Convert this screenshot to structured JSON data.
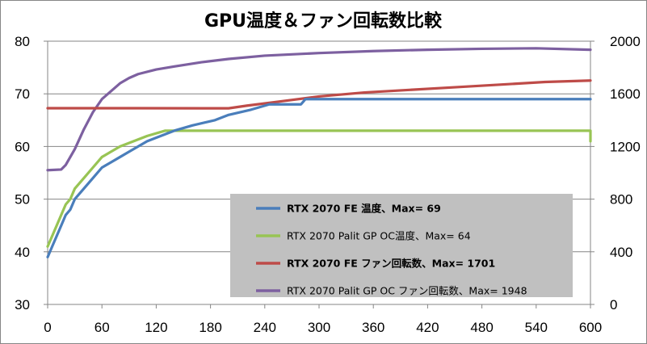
{
  "chart_data": {
    "type": "line",
    "title": "GPU温度＆ファン回転数比較",
    "x": {
      "ticks": [
        0,
        60,
        120,
        180,
        240,
        300,
        360,
        420,
        480,
        540,
        600
      ],
      "range": [
        0,
        600
      ]
    },
    "y_left": {
      "ticks": [
        30,
        40,
        50,
        60,
        70,
        80
      ],
      "range": [
        30,
        80
      ]
    },
    "y_right": {
      "ticks": [
        0,
        400,
        800,
        1200,
        1600,
        2000
      ],
      "range": [
        0,
        2000
      ]
    },
    "legend": {
      "placement": "lower-right-inside"
    },
    "series": [
      {
        "name": "RTX 2070 FE 温度、Max= 69",
        "axis": "left",
        "color": "#4a7ebb",
        "bold": true,
        "points": [
          [
            0,
            39
          ],
          [
            5,
            41
          ],
          [
            10,
            43
          ],
          [
            15,
            45
          ],
          [
            20,
            47
          ],
          [
            25,
            48
          ],
          [
            30,
            50
          ],
          [
            35,
            51
          ],
          [
            40,
            52
          ],
          [
            50,
            54
          ],
          [
            60,
            56
          ],
          [
            70,
            57
          ],
          [
            80,
            58
          ],
          [
            90,
            59
          ],
          [
            100,
            60
          ],
          [
            110,
            61
          ],
          [
            125,
            62
          ],
          [
            140,
            63
          ],
          [
            160,
            64
          ],
          [
            185,
            65
          ],
          [
            200,
            66
          ],
          [
            225,
            67
          ],
          [
            245,
            68
          ],
          [
            280,
            68
          ],
          [
            285,
            69
          ],
          [
            600,
            69
          ]
        ]
      },
      {
        "name": "RTX 2070 Palit GP OC温度、Max= 64",
        "axis": "left",
        "color": "#98c454",
        "bold": false,
        "points": [
          [
            0,
            41
          ],
          [
            5,
            43
          ],
          [
            10,
            45
          ],
          [
            15,
            47
          ],
          [
            20,
            49
          ],
          [
            25,
            50
          ],
          [
            30,
            52
          ],
          [
            35,
            53
          ],
          [
            40,
            54
          ],
          [
            50,
            56
          ],
          [
            60,
            58
          ],
          [
            70,
            59
          ],
          [
            80,
            60
          ],
          [
            95,
            61
          ],
          [
            110,
            62
          ],
          [
            130,
            63
          ],
          [
            220,
            63
          ],
          [
            600,
            63
          ],
          [
            600,
            61
          ]
        ]
      },
      {
        "name": "RTX 2070 FE ファン回転数、Max= 1701",
        "axis": "right",
        "color": "#be4b48",
        "bold": true,
        "points": [
          [
            0,
            1491
          ],
          [
            100,
            1491
          ],
          [
            200,
            1490
          ],
          [
            220,
            1510
          ],
          [
            260,
            1545
          ],
          [
            300,
            1580
          ],
          [
            350,
            1610
          ],
          [
            400,
            1630
          ],
          [
            450,
            1650
          ],
          [
            500,
            1670
          ],
          [
            550,
            1690
          ],
          [
            600,
            1701
          ]
        ]
      },
      {
        "name": "RTX 2070 Palit GP OC ファン回転数、Max= 1948",
        "axis": "right",
        "color": "#7d60a0",
        "bold": false,
        "points": [
          [
            0,
            1020
          ],
          [
            15,
            1025
          ],
          [
            20,
            1060
          ],
          [
            30,
            1180
          ],
          [
            40,
            1330
          ],
          [
            50,
            1460
          ],
          [
            60,
            1560
          ],
          [
            70,
            1620
          ],
          [
            80,
            1680
          ],
          [
            90,
            1720
          ],
          [
            100,
            1750
          ],
          [
            120,
            1785
          ],
          [
            140,
            1808
          ],
          [
            170,
            1840
          ],
          [
            200,
            1865
          ],
          [
            240,
            1890
          ],
          [
            300,
            1910
          ],
          [
            360,
            1925
          ],
          [
            420,
            1935
          ],
          [
            480,
            1942
          ],
          [
            540,
            1946
          ],
          [
            600,
            1935
          ]
        ]
      }
    ]
  }
}
